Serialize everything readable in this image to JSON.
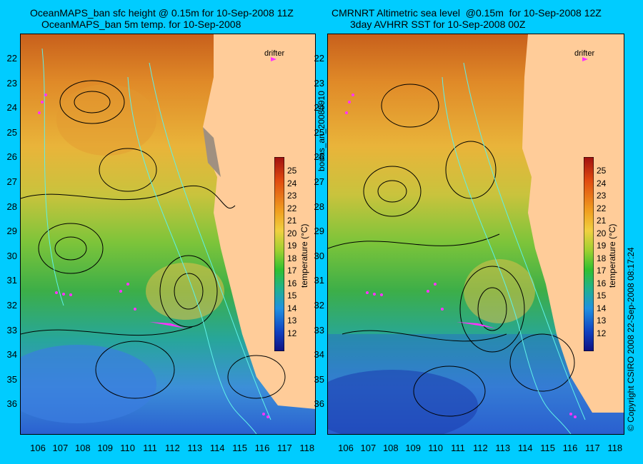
{
  "titles": {
    "left_line1": "OceanMAPS_ban sfc height @ 0.15m for 10-Sep-2008 11Z",
    "left_line2": "OceanMAPS_ban 5m temp. for 10-Sep-2008",
    "right_line1": "CMRNRT Altimetric sea level  @0.15m  for 10-Sep-2008 12Z",
    "right_line2": "3day AVHRR SST for 10-Sep-2008 00Z"
  },
  "drifter_label": "drifter",
  "colorbar": {
    "title": "temperature (°C)",
    "ticks": [
      "25",
      "24",
      "23",
      "22",
      "21",
      "20",
      "19",
      "18",
      "17",
      "16",
      "15",
      "14",
      "13",
      "12"
    ]
  },
  "lat_ticks": [
    "22",
    "23",
    "24",
    "25",
    "26",
    "27",
    "28",
    "29",
    "30",
    "31",
    "32",
    "33",
    "34",
    "35",
    "36"
  ],
  "lon_ticks": [
    "106",
    "107",
    "108",
    "109",
    "110",
    "111",
    "112",
    "113",
    "114",
    "115",
    "116",
    "117",
    "118"
  ],
  "side_left": "bodas_an_20080910",
  "side_right": "© Copyright CSIRO 2008     22-Sep-2008 08:17:24",
  "colors": {
    "background": "#00ccff",
    "land": "#ffcc99",
    "drifter": "#ff33ff"
  }
}
